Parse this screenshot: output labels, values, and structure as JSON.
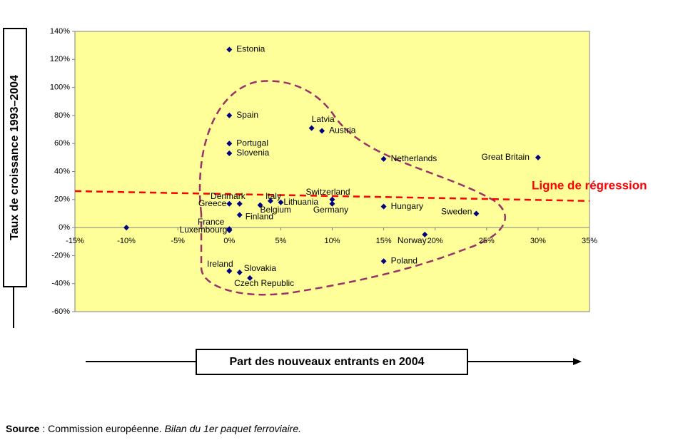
{
  "chart_data": {
    "type": "scatter",
    "y_label": "Taux de croissance 1993–2004",
    "x_label": "Part des nouveaux entrants en 2004",
    "labels": [
      "Estonia",
      "Spain",
      "Portugal",
      "Slovenia",
      "Latvia",
      "Austria",
      "Netherlands",
      "Great Britain",
      "Switzerland",
      "Germany",
      "Italy",
      "Lithuania",
      "Belgium",
      "Denmark",
      "Greece",
      "Finland",
      "Hungary",
      "Sweden",
      "France",
      "Luxembourg",
      null,
      "Norway",
      "Poland",
      "Ireland",
      "Slovakia",
      "Czech  Republic"
    ],
    "x": [
      0,
      0,
      0,
      0,
      8,
      9,
      15,
      30,
      10,
      10,
      4,
      5,
      3,
      1,
      0,
      1,
      15,
      24,
      0,
      0,
      -10,
      19,
      15,
      0,
      1,
      2
    ],
    "y": [
      127,
      80,
      60,
      53,
      71,
      69,
      49,
      50,
      20,
      17,
      19,
      18,
      16,
      17,
      17,
      9,
      15,
      10,
      -1,
      -2,
      0,
      -5,
      -24,
      -31,
      -32,
      -36
    ],
    "color": "#000080",
    "xlim": [
      -15,
      35
    ],
    "ylim": [
      -60,
      140
    ],
    "xticks": [
      {
        "value": -15,
        "label": "-15%"
      },
      {
        "value": -10,
        "label": "-10%"
      },
      {
        "value": -5,
        "label": "-5%"
      },
      {
        "value": 0,
        "label": "0%"
      },
      {
        "value": 5,
        "label": "5%"
      },
      {
        "value": 10,
        "label": "10%"
      },
      {
        "value": 15,
        "label": "15%"
      },
      {
        "value": 20,
        "label": "20%"
      },
      {
        "value": 25,
        "label": "25%"
      },
      {
        "value": 30,
        "label": "30%"
      },
      {
        "value": 35,
        "label": "35%"
      }
    ],
    "yticks": [
      {
        "value": -60,
        "label": "-60%"
      },
      {
        "value": -40,
        "label": "-40%"
      },
      {
        "value": -20,
        "label": "-20%"
      },
      {
        "value": 0,
        "label": "0%"
      },
      {
        "value": 20,
        "label": "20%"
      },
      {
        "value": 40,
        "label": "40%"
      },
      {
        "value": 60,
        "label": "60%"
      },
      {
        "value": 80,
        "label": "80%"
      },
      {
        "value": 100,
        "label": "100%"
      },
      {
        "value": 120,
        "label": "120%"
      },
      {
        "value": 140,
        "label": "140%"
      }
    ],
    "regression": {
      "label": "Ligne de régression",
      "x": [
        -15,
        35
      ],
      "y": [
        26,
        19
      ],
      "color": "#ff0000"
    }
  },
  "source": {
    "label": "Source",
    "text": " : Commission européenne. ",
    "title": "Bilan du 1er paquet ferroviaire."
  }
}
